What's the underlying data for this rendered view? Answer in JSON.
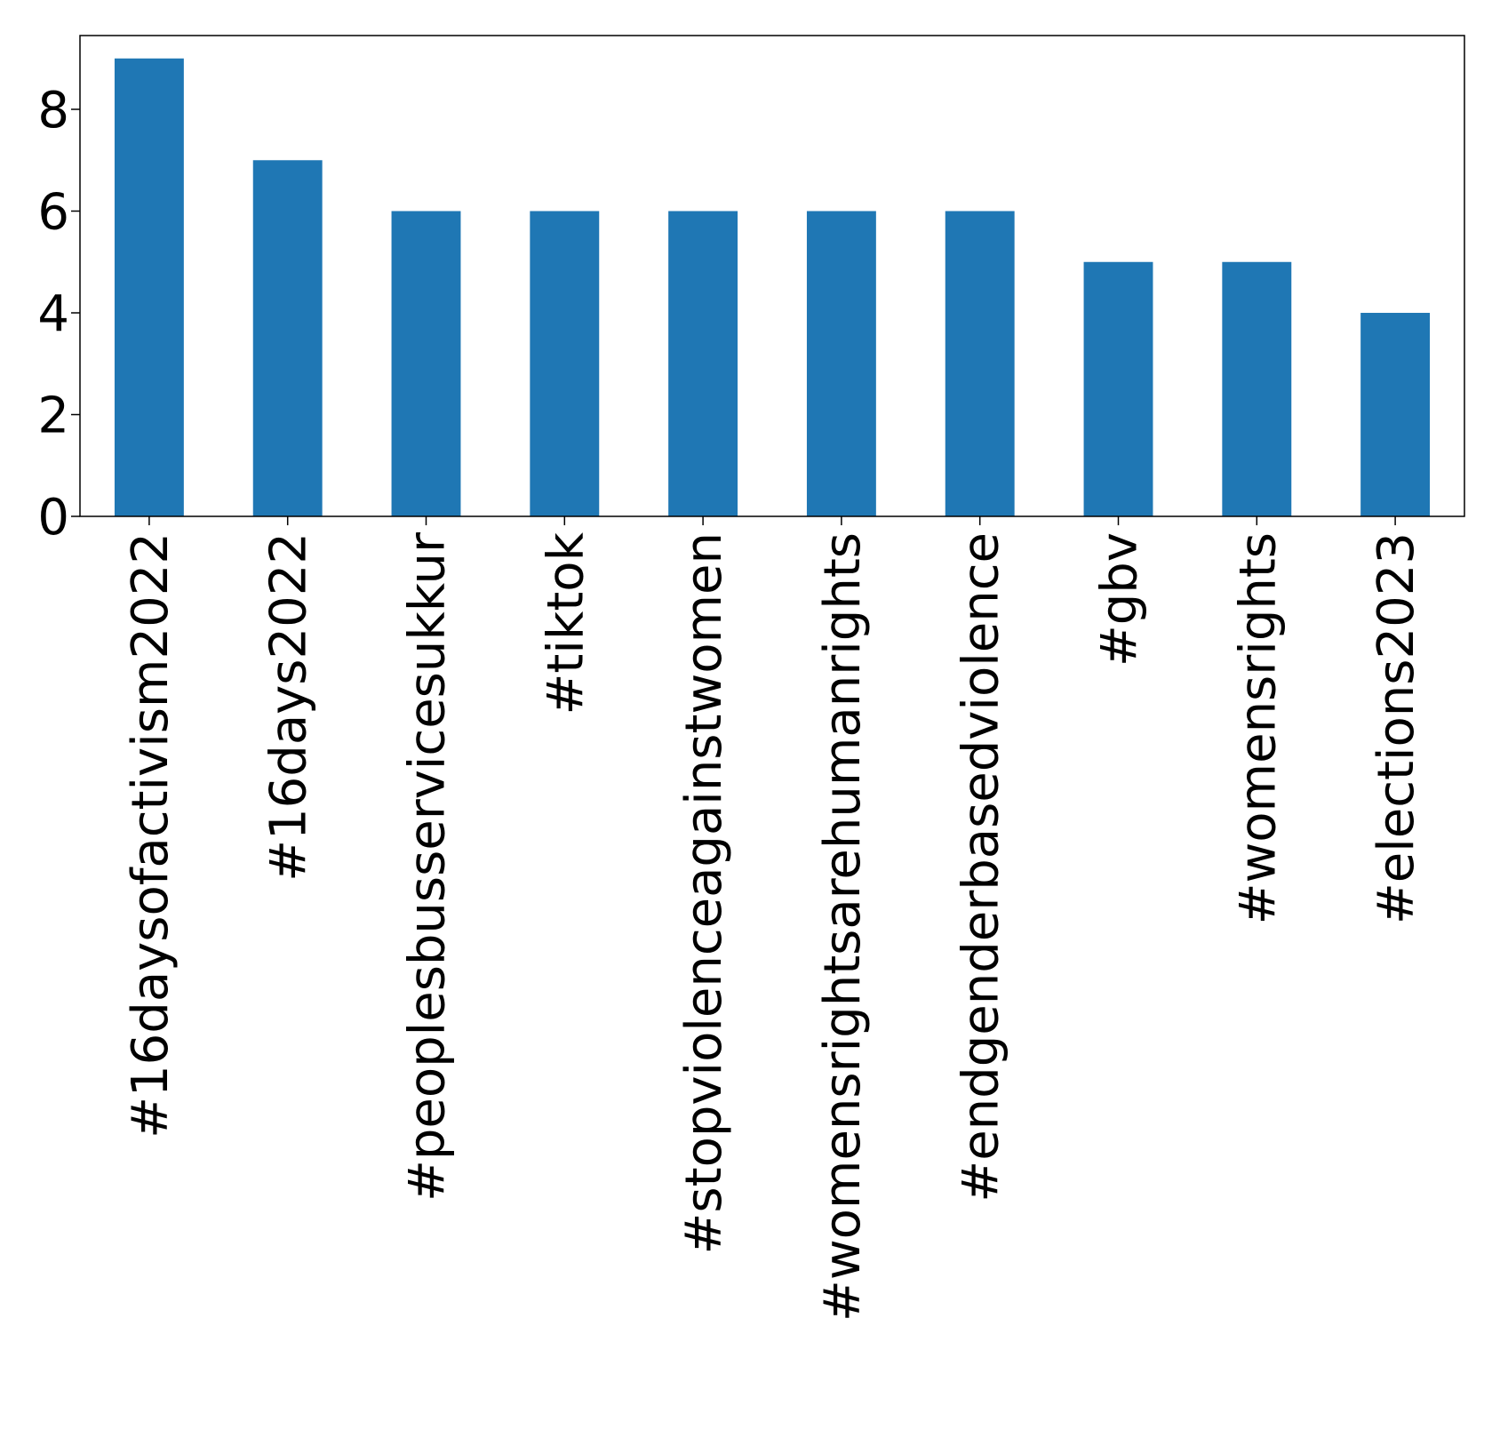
{
  "chart_data": {
    "type": "bar",
    "categories": [
      "#16daysofactivism2022",
      "#16days2022",
      "#peoplesbusservicesukkur",
      "#tiktok",
      "#stopviolenceagainstwomen",
      "#womensrightsarehumanrights",
      "#endgenderbasedviolence",
      "#gbv",
      "#womensrights",
      "#elections2023"
    ],
    "values": [
      9,
      7,
      6,
      6,
      6,
      6,
      6,
      5,
      5,
      4
    ],
    "title": "",
    "xlabel": "",
    "ylabel": "",
    "ylim": [
      0,
      9.45
    ],
    "yticks": [
      0,
      2,
      4,
      6,
      8
    ],
    "ytick_labels": [
      "0",
      "2",
      "4",
      "6",
      "8"
    ],
    "xtick_rotation": 90,
    "grid": false,
    "legend": false,
    "bar_color": "#1f77b4",
    "axes_color": "#000000"
  }
}
